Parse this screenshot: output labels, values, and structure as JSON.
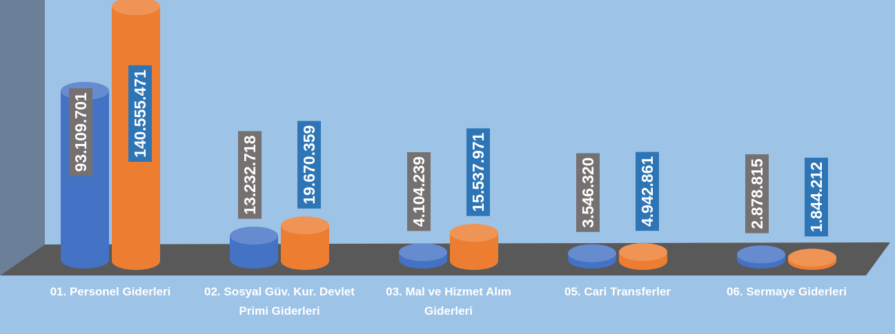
{
  "chart_data": {
    "type": "bar3d",
    "categories": [
      "01. Personel Giderleri",
      "02. Sosyal Güv. Kur. Devlet Primi Giderleri",
      "03. Mal ve Hizmet Alım Giderleri",
      "05. Cari Transferler",
      "06. Sermaye Giderleri"
    ],
    "series": [
      {
        "color": "#4472c4",
        "label_box": "#767171",
        "values": [
          93109701,
          13232718,
          4104239,
          3546320,
          2878815
        ],
        "value_labels": [
          "93.109.701",
          "13.232.718",
          "4.104.239",
          "3.546.320",
          "2.878.815"
        ]
      },
      {
        "color": "#ed7d31",
        "label_box": "#2e75b6",
        "values": [
          140555471,
          19670359,
          15537971,
          4942861,
          1844212
        ],
        "value_labels": [
          "140.555.471",
          "19.670.359",
          "15.537.971",
          "4.942.861",
          "1.844.212"
        ]
      }
    ]
  }
}
